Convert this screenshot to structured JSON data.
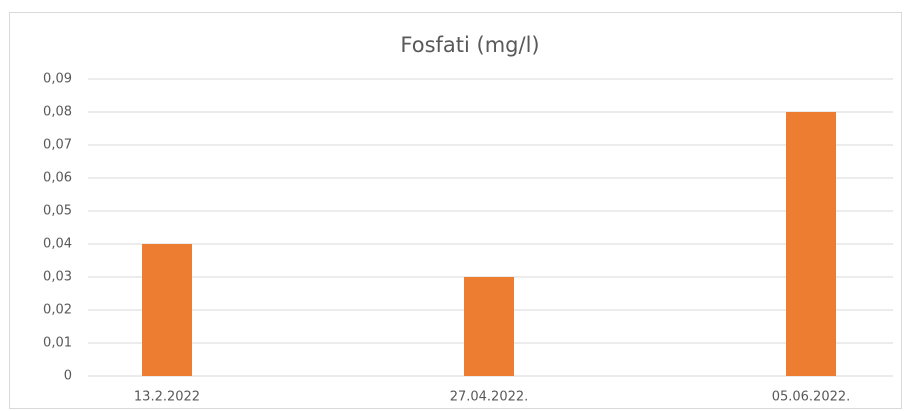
{
  "chart_data": {
    "type": "bar",
    "title": "Fosfati (mg/l)",
    "categories": [
      "13.2.2022",
      "27.04.2022.",
      "05.06.2022."
    ],
    "values": [
      0.04,
      0.03,
      0.08
    ],
    "color": "#ed7d31",
    "ylim": [
      0,
      0.09
    ],
    "yticks": [
      0,
      {
        "value": 0.01,
        "label": "0,01"
      },
      {
        "value": 0.02,
        "label": "0,02"
      },
      {
        "value": 0.03,
        "label": "0,03"
      },
      {
        "value": 0.04,
        "label": "0,04"
      },
      {
        "value": 0.05,
        "label": "0,05"
      },
      {
        "value": 0.06,
        "label": "0,06"
      },
      {
        "value": 0.07,
        "label": "0,07"
      },
      {
        "value": 0.08,
        "label": "0,08"
      },
      {
        "value": 0.09,
        "label": "0,09"
      }
    ],
    "grid": true
  }
}
